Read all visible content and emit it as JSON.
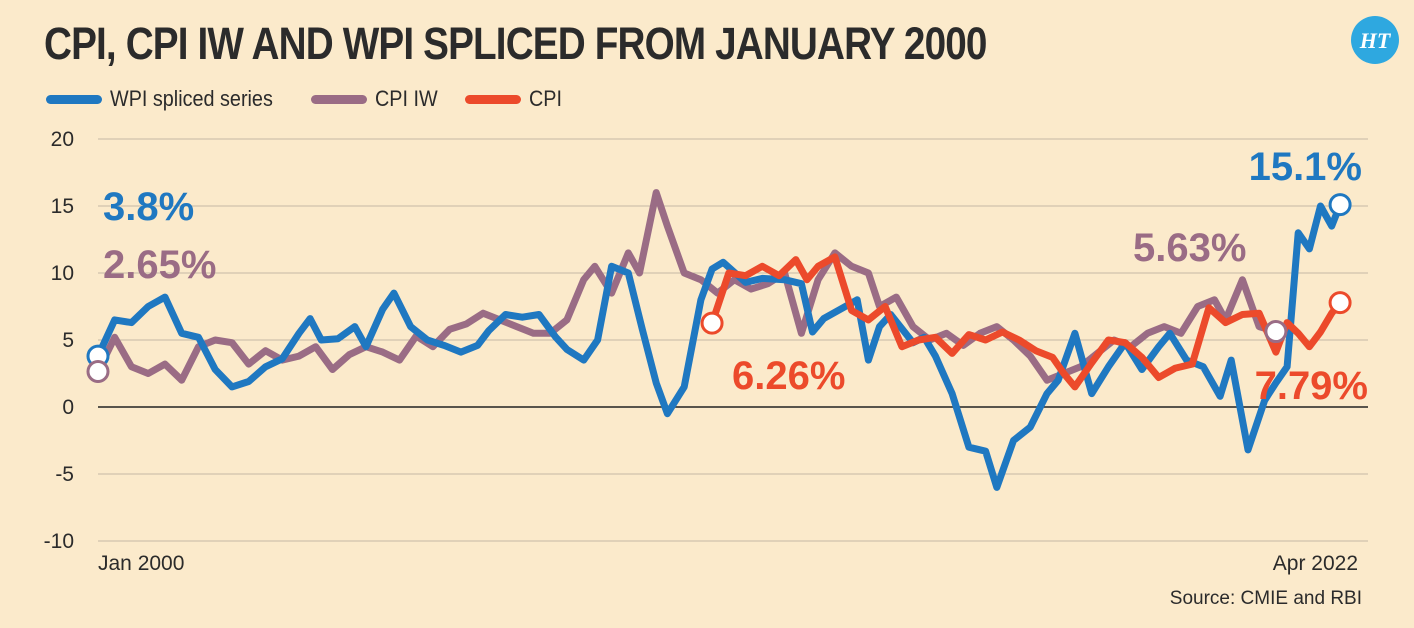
{
  "title": "CPI, CPI IW AND WPI SPLICED FROM JANUARY 2000",
  "logo_text": "HT",
  "source": "Source: CMIE and RBI",
  "colors": {
    "wpi": "#1f78c1",
    "cpi_iw": "#9a6c85",
    "cpi": "#ec4a2b",
    "background": "#fbeacb",
    "grid": "#bdbdbd",
    "logo": "#2ea8e0"
  },
  "chart_data": {
    "type": "line",
    "title": "CPI, CPI IW AND WPI SPLICED FROM JANUARY 2000",
    "xlabel": "",
    "ylabel": "",
    "ylim": [
      -10,
      20
    ],
    "xlim": [
      2000.0,
      2022.25
    ],
    "x_tick_labels": [
      "Jan 2000",
      "Apr 2022"
    ],
    "y_ticks": [
      20,
      15,
      10,
      5,
      0,
      -5,
      -10
    ],
    "grid": true,
    "legend_position": "top-left",
    "series": [
      {
        "name": "WPI spliced series",
        "color": "#1f78c1",
        "points": [
          [
            2000.0,
            3.8
          ],
          [
            2000.3,
            6.5
          ],
          [
            2000.6,
            6.3
          ],
          [
            2000.9,
            7.5
          ],
          [
            2001.2,
            8.2
          ],
          [
            2001.5,
            5.5
          ],
          [
            2001.8,
            5.2
          ],
          [
            2002.1,
            2.8
          ],
          [
            2002.4,
            1.5
          ],
          [
            2002.7,
            1.9
          ],
          [
            2003.0,
            3.0
          ],
          [
            2003.3,
            3.6
          ],
          [
            2003.6,
            5.5
          ],
          [
            2003.8,
            6.6
          ],
          [
            2004.0,
            5.0
          ],
          [
            2004.3,
            5.1
          ],
          [
            2004.6,
            6.0
          ],
          [
            2004.8,
            4.5
          ],
          [
            2005.1,
            7.3
          ],
          [
            2005.3,
            8.5
          ],
          [
            2005.6,
            6.0
          ],
          [
            2005.9,
            5.0
          ],
          [
            2006.2,
            4.6
          ],
          [
            2006.5,
            4.1
          ],
          [
            2006.8,
            4.6
          ],
          [
            2007.0,
            5.7
          ],
          [
            2007.3,
            6.9
          ],
          [
            2007.6,
            6.7
          ],
          [
            2007.9,
            6.9
          ],
          [
            2008.2,
            5.2
          ],
          [
            2008.4,
            4.3
          ],
          [
            2008.7,
            3.5
          ],
          [
            2008.95,
            5.0
          ],
          [
            2009.2,
            10.5
          ],
          [
            2009.5,
            10.0
          ],
          [
            2009.75,
            5.8
          ],
          [
            2010.0,
            1.8
          ],
          [
            2010.2,
            -0.5
          ],
          [
            2010.5,
            1.5
          ],
          [
            2010.8,
            8.0
          ],
          [
            2011.0,
            10.3
          ],
          [
            2011.2,
            10.8
          ],
          [
            2011.6,
            9.3
          ],
          [
            2011.9,
            9.6
          ],
          [
            2012.3,
            9.5
          ],
          [
            2012.6,
            9.2
          ],
          [
            2012.8,
            5.6
          ],
          [
            2013.0,
            6.6
          ],
          [
            2013.3,
            7.3
          ],
          [
            2013.6,
            8.0
          ],
          [
            2013.8,
            3.5
          ],
          [
            2014.0,
            6.0
          ],
          [
            2014.2,
            6.9
          ],
          [
            2014.6,
            4.8
          ],
          [
            2014.8,
            5.2
          ],
          [
            2015.0,
            3.8
          ],
          [
            2015.3,
            1.0
          ],
          [
            2015.6,
            -3.0
          ],
          [
            2015.9,
            -3.3
          ],
          [
            2016.1,
            -6.0
          ],
          [
            2016.4,
            -2.5
          ],
          [
            2016.7,
            -1.5
          ],
          [
            2017.0,
            1.0
          ],
          [
            2017.2,
            2.0
          ],
          [
            2017.5,
            5.5
          ],
          [
            2017.8,
            1.0
          ],
          [
            2018.1,
            3.0
          ],
          [
            2018.4,
            4.8
          ],
          [
            2018.7,
            2.8
          ],
          [
            2019.0,
            4.5
          ],
          [
            2019.2,
            5.5
          ],
          [
            2019.5,
            3.5
          ],
          [
            2019.8,
            3.0
          ],
          [
            2020.1,
            0.8
          ],
          [
            2020.3,
            3.5
          ],
          [
            2020.6,
            -3.2
          ],
          [
            2020.9,
            0.5
          ],
          [
            2021.1,
            1.8
          ],
          [
            2021.3,
            3.0
          ],
          [
            2021.5,
            13.0
          ],
          [
            2021.7,
            11.8
          ],
          [
            2021.9,
            15.0
          ],
          [
            2022.1,
            13.5
          ],
          [
            2022.25,
            15.1
          ]
        ]
      },
      {
        "name": "CPI IW",
        "color": "#9a6c85",
        "points": [
          [
            2000.0,
            2.65
          ],
          [
            2000.3,
            5.2
          ],
          [
            2000.6,
            3.0
          ],
          [
            2000.9,
            2.5
          ],
          [
            2001.2,
            3.2
          ],
          [
            2001.5,
            2.0
          ],
          [
            2001.8,
            4.5
          ],
          [
            2002.1,
            5.0
          ],
          [
            2002.4,
            4.8
          ],
          [
            2002.7,
            3.2
          ],
          [
            2003.0,
            4.2
          ],
          [
            2003.3,
            3.5
          ],
          [
            2003.6,
            3.8
          ],
          [
            2003.9,
            4.5
          ],
          [
            2004.2,
            2.8
          ],
          [
            2004.5,
            3.9
          ],
          [
            2004.8,
            4.5
          ],
          [
            2005.1,
            4.1
          ],
          [
            2005.4,
            3.5
          ],
          [
            2005.7,
            5.3
          ],
          [
            2006.0,
            4.5
          ],
          [
            2006.3,
            5.8
          ],
          [
            2006.6,
            6.2
          ],
          [
            2006.9,
            7.0
          ],
          [
            2007.2,
            6.5
          ],
          [
            2007.5,
            6.0
          ],
          [
            2007.8,
            5.5
          ],
          [
            2008.1,
            5.5
          ],
          [
            2008.4,
            6.5
          ],
          [
            2008.7,
            9.5
          ],
          [
            2008.9,
            10.5
          ],
          [
            2009.2,
            8.5
          ],
          [
            2009.5,
            11.5
          ],
          [
            2009.7,
            10.0
          ],
          [
            2010.0,
            16.0
          ],
          [
            2010.2,
            13.5
          ],
          [
            2010.5,
            10.0
          ],
          [
            2010.8,
            9.5
          ],
          [
            2011.1,
            8.5
          ],
          [
            2011.4,
            9.5
          ],
          [
            2011.7,
            8.8
          ],
          [
            2012.0,
            9.2
          ],
          [
            2012.3,
            10.0
          ],
          [
            2012.6,
            5.5
          ],
          [
            2012.9,
            9.5
          ],
          [
            2013.2,
            11.5
          ],
          [
            2013.5,
            10.5
          ],
          [
            2013.8,
            10.0
          ],
          [
            2014.0,
            7.5
          ],
          [
            2014.3,
            8.2
          ],
          [
            2014.6,
            6.0
          ],
          [
            2014.9,
            5.0
          ],
          [
            2015.2,
            5.5
          ],
          [
            2015.5,
            4.6
          ],
          [
            2015.8,
            5.5
          ],
          [
            2016.1,
            6.0
          ],
          [
            2016.4,
            5.0
          ],
          [
            2016.7,
            3.8
          ],
          [
            2017.0,
            2.0
          ],
          [
            2017.3,
            2.5
          ],
          [
            2017.6,
            3.0
          ],
          [
            2017.9,
            4.0
          ],
          [
            2018.2,
            5.0
          ],
          [
            2018.5,
            4.5
          ],
          [
            2018.8,
            5.5
          ],
          [
            2019.1,
            6.0
          ],
          [
            2019.4,
            5.5
          ],
          [
            2019.7,
            7.5
          ],
          [
            2020.0,
            8.0
          ],
          [
            2020.2,
            6.5
          ],
          [
            2020.5,
            9.5
          ],
          [
            2020.8,
            6.0
          ],
          [
            2021.1,
            5.63
          ]
        ]
      },
      {
        "name": "CPI",
        "color": "#ec4a2b",
        "points": [
          [
            2011.0,
            6.26
          ],
          [
            2011.3,
            10.0
          ],
          [
            2011.6,
            9.8
          ],
          [
            2011.9,
            10.5
          ],
          [
            2012.2,
            9.8
          ],
          [
            2012.5,
            11.0
          ],
          [
            2012.7,
            9.5
          ],
          [
            2012.9,
            10.5
          ],
          [
            2013.2,
            11.2
          ],
          [
            2013.5,
            7.2
          ],
          [
            2013.8,
            6.5
          ],
          [
            2014.1,
            7.5
          ],
          [
            2014.4,
            4.5
          ],
          [
            2014.7,
            5.0
          ],
          [
            2015.0,
            5.2
          ],
          [
            2015.3,
            4.0
          ],
          [
            2015.6,
            5.4
          ],
          [
            2015.9,
            5.0
          ],
          [
            2016.2,
            5.6
          ],
          [
            2016.5,
            5.0
          ],
          [
            2016.8,
            4.2
          ],
          [
            2017.1,
            3.7
          ],
          [
            2017.3,
            2.5
          ],
          [
            2017.5,
            1.5
          ],
          [
            2017.8,
            3.3
          ],
          [
            2018.1,
            5.0
          ],
          [
            2018.4,
            4.8
          ],
          [
            2018.7,
            3.7
          ],
          [
            2019.0,
            2.2
          ],
          [
            2019.3,
            2.9
          ],
          [
            2019.6,
            3.2
          ],
          [
            2019.9,
            7.4
          ],
          [
            2020.2,
            6.3
          ],
          [
            2020.5,
            6.9
          ],
          [
            2020.8,
            7.0
          ],
          [
            2021.1,
            4.1
          ],
          [
            2021.3,
            6.3
          ],
          [
            2021.5,
            5.5
          ],
          [
            2021.7,
            4.5
          ],
          [
            2021.9,
            5.6
          ],
          [
            2022.1,
            7.0
          ],
          [
            2022.25,
            7.79
          ]
        ]
      }
    ],
    "annotations": [
      {
        "text": "3.8%",
        "series": "WPI spliced series",
        "x": 2000.0,
        "y": 3.8
      },
      {
        "text": "2.65%",
        "series": "CPI IW",
        "x": 2000.0,
        "y": 2.65
      },
      {
        "text": "6.26%",
        "series": "CPI",
        "x": 2011.0,
        "y": 6.26
      },
      {
        "text": "5.63%",
        "series": "CPI IW",
        "x": 2021.1,
        "y": 5.63
      },
      {
        "text": "15.1%",
        "series": "WPI spliced series",
        "x": 2022.25,
        "y": 15.1
      },
      {
        "text": "7.79%",
        "series": "CPI",
        "x": 2022.25,
        "y": 7.79
      }
    ]
  }
}
